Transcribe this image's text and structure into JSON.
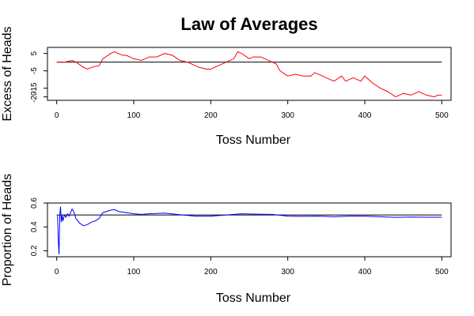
{
  "title": "Law of Averages",
  "chart_data": [
    {
      "type": "line",
      "xlabel": "Toss Number",
      "ylabel": "Excess of Heads",
      "xlim": [
        -12,
        512
      ],
      "ylim": [
        -22,
        8.5
      ],
      "xticks": [
        0,
        100,
        200,
        300,
        400,
        500
      ],
      "xtick_labels": [
        "0",
        "100",
        "200",
        "300",
        "400",
        "500"
      ],
      "yticks": [
        -20,
        -15,
        -5,
        5
      ],
      "ytick_labels": [
        "-20",
        "-15",
        "-5",
        "5"
      ],
      "reference_line": 0,
      "series": [
        {
          "color": "#ff0000",
          "x": [
            1,
            5,
            10,
            20,
            25,
            35,
            40,
            45,
            55,
            60,
            70,
            75,
            85,
            90,
            100,
            110,
            120,
            130,
            140,
            150,
            160,
            170,
            175,
            185,
            195,
            200,
            210,
            220,
            230,
            235,
            240,
            250,
            255,
            265,
            270,
            280,
            285,
            290,
            300,
            310,
            320,
            330,
            335,
            345,
            350,
            360,
            370,
            375,
            385,
            395,
            400,
            410,
            420,
            430,
            440,
            450,
            460,
            470,
            480,
            490,
            495,
            500
          ],
          "y": [
            0,
            0,
            0,
            1,
            0,
            -3,
            -4,
            -3,
            -2,
            2,
            5,
            6,
            4,
            4,
            2,
            1,
            3,
            3,
            5,
            4,
            1,
            0,
            -1,
            -3,
            -4,
            -4,
            -2,
            0,
            2,
            6,
            5,
            2,
            3,
            3,
            2,
            0,
            -1,
            -5,
            -8,
            -7,
            -8,
            -8,
            -6,
            -8,
            -9,
            -11,
            -8,
            -11,
            -9,
            -11,
            -8,
            -12,
            -15,
            -17,
            -20,
            -18,
            -19,
            -17,
            -19,
            -20,
            -19,
            -19
          ]
        }
      ]
    },
    {
      "type": "line",
      "xlabel": "Toss Number",
      "ylabel": "Proportion of Heads",
      "xlim": [
        -12,
        512
      ],
      "ylim": [
        0.15,
        0.6
      ],
      "xticks": [
        0,
        100,
        200,
        300,
        400,
        500
      ],
      "xtick_labels": [
        "0",
        "100",
        "200",
        "300",
        "400",
        "500"
      ],
      "yticks": [
        0.2,
        0.4,
        0.6
      ],
      "ytick_labels": [
        "0.2",
        "0.4",
        "0.6"
      ],
      "reference_line": 0.5,
      "series": [
        {
          "color": "#0000ff",
          "x": [
            1,
            2,
            3,
            4,
            5,
            6,
            7,
            8,
            10,
            12,
            14,
            16,
            18,
            20,
            22,
            25,
            30,
            35,
            40,
            45,
            50,
            55,
            60,
            65,
            70,
            75,
            80,
            90,
            100,
            110,
            120,
            140,
            160,
            180,
            200,
            220,
            240,
            260,
            280,
            300,
            320,
            340,
            360,
            380,
            400,
            420,
            440,
            460,
            480,
            500
          ],
          "y": [
            0.5,
            0.3,
            0.17,
            0.5,
            0.57,
            0.44,
            0.5,
            0.45,
            0.5,
            0.48,
            0.51,
            0.49,
            0.52,
            0.55,
            0.53,
            0.47,
            0.43,
            0.41,
            0.42,
            0.44,
            0.45,
            0.47,
            0.52,
            0.53,
            0.54,
            0.545,
            0.53,
            0.52,
            0.51,
            0.505,
            0.51,
            0.515,
            0.503,
            0.49,
            0.49,
            0.5,
            0.51,
            0.507,
            0.505,
            0.49,
            0.488,
            0.49,
            0.485,
            0.49,
            0.49,
            0.485,
            0.48,
            0.482,
            0.481,
            0.481
          ]
        }
      ]
    }
  ]
}
